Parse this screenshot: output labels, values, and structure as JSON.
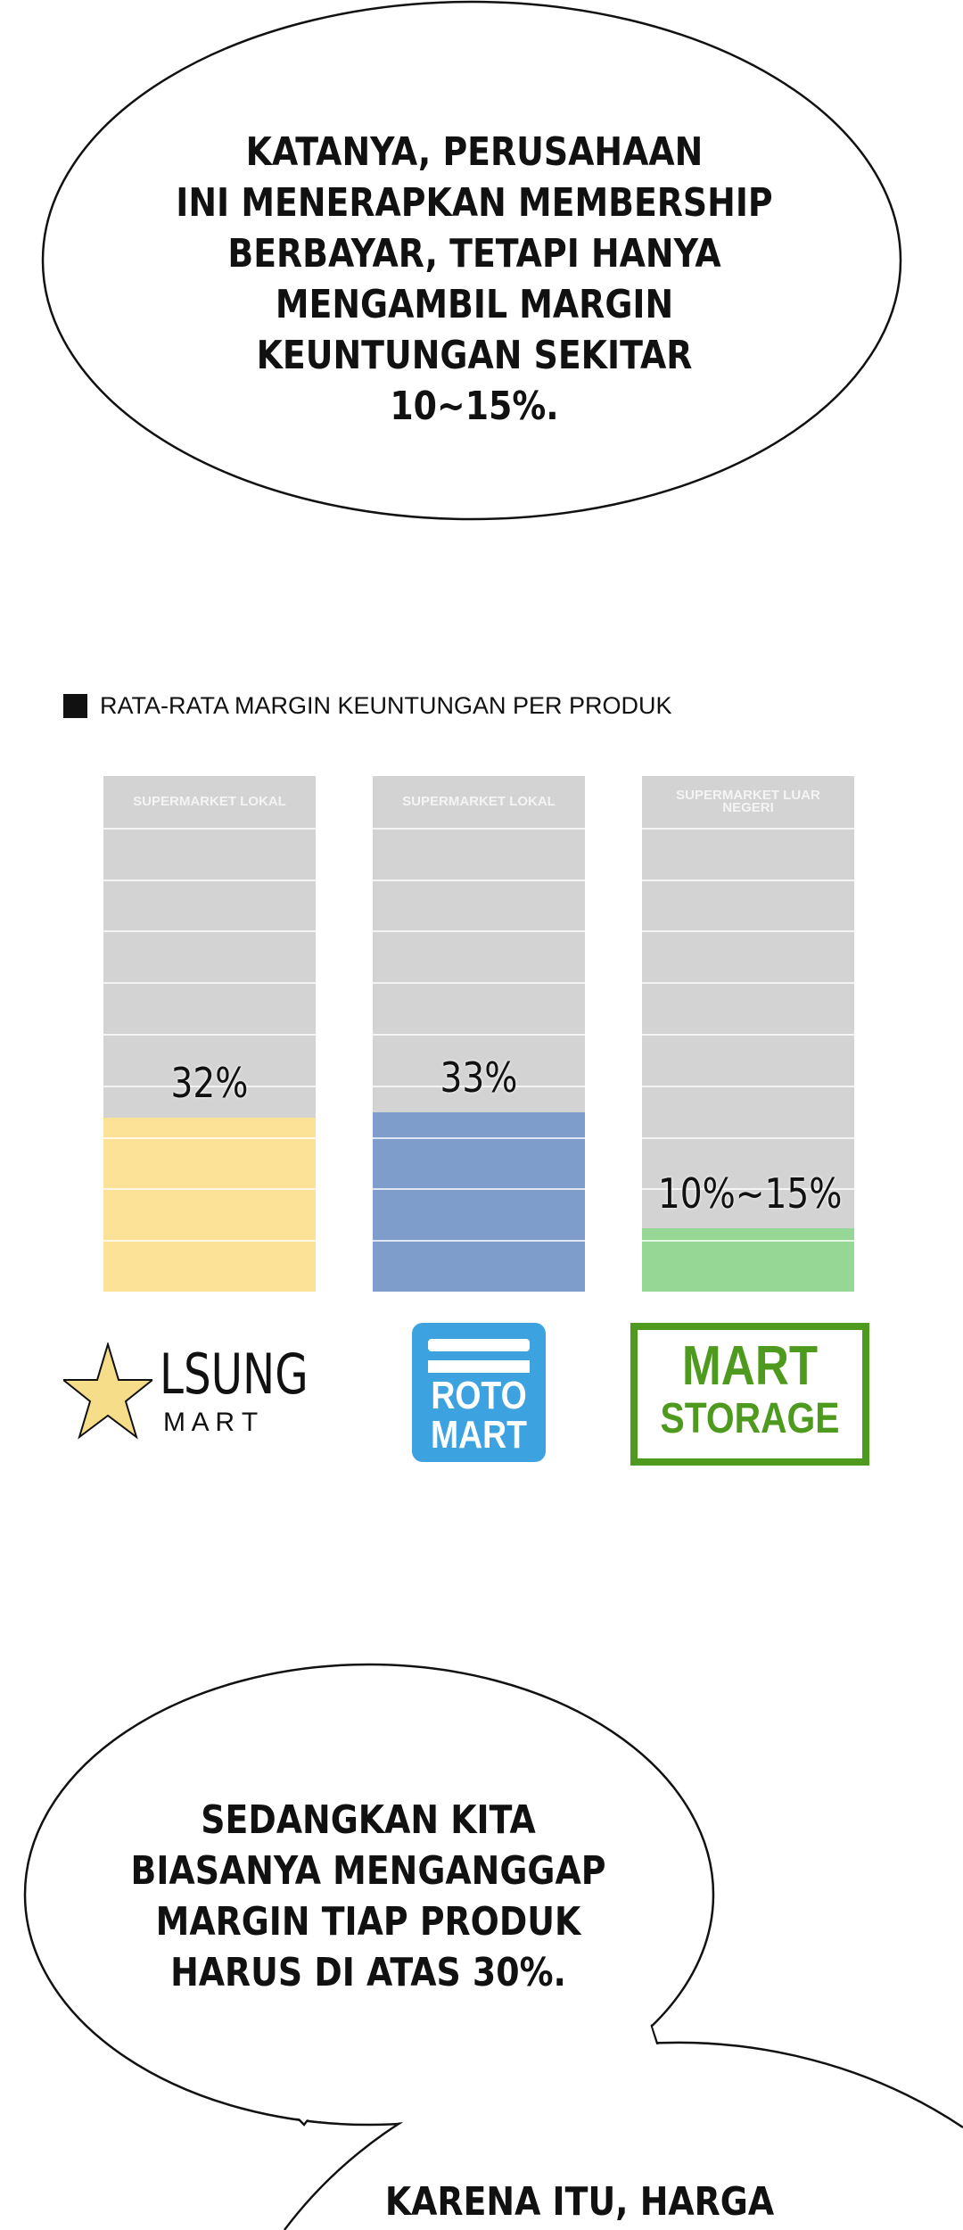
{
  "bubble_top": {
    "lines": [
      "KATANYA, PERUSAHAAN",
      "INI MENERAPKAN MEMBERSHIP",
      "BERBAYAR, TETAPI HANYA",
      "MENGAMBIL MARGIN",
      "KEUNTUNGAN SEKITAR",
      "10~15%."
    ]
  },
  "chart_data": {
    "type": "bar",
    "title": "RATA-RATA MARGIN KEUNTUNGAN PER PRODUK",
    "categories": [
      "SUPERMARKET LOKAL",
      "SUPERMARKET LOKAL",
      "SUPERMARKET LUAR NEGERI"
    ],
    "values": [
      32,
      33,
      12.5
    ],
    "value_labels": [
      "32%",
      "33%",
      "10%~15%"
    ],
    "colors": [
      "#fbe297",
      "#7f9dcb",
      "#97d795"
    ],
    "background_color": "#d3d3d3",
    "ylim": [
      0,
      100
    ],
    "grid": true
  },
  "logos": [
    {
      "name": "LSUNG",
      "sub": "M A R T",
      "color": "#f6dd8a"
    },
    {
      "line1": "ROTO",
      "line2": "MART",
      "color": "#3da2e0"
    },
    {
      "line1": "MART",
      "line2": "STORAGE",
      "color": "#4e9a1f"
    }
  ],
  "bubble_middle": {
    "lines": [
      "SEDANGKAN KITA",
      "BIASANYA MENGANGGAP",
      "MARGIN TIAP PRODUK",
      "HARUS DI ATAS 30%."
    ]
  },
  "bubble_bottom": {
    "lines": [
      "KARENA ITU, HARGA"
    ]
  }
}
